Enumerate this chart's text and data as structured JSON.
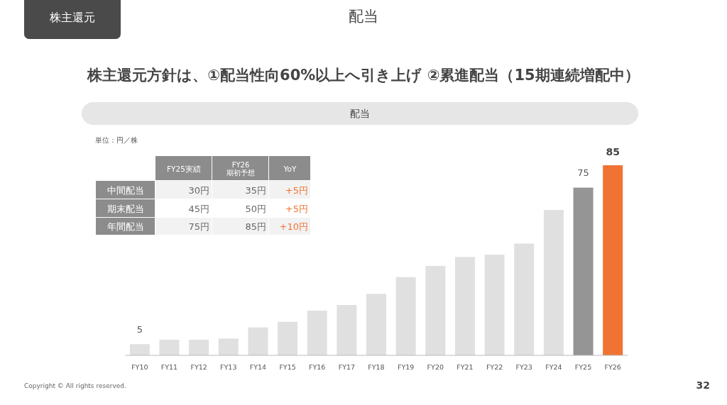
{
  "chart_data": {
    "type": "bar",
    "title": "配当",
    "subtitle": "株主還元方針は、①配当性向60%以上へ引き上げ ②累進配当（15期連続増配中）",
    "categories": [
      "FY10",
      "FY11",
      "FY12",
      "FY13",
      "FY14",
      "FY15",
      "FY16",
      "FY17",
      "FY18",
      "FY19",
      "FY20",
      "FY21",
      "FY22",
      "FY23",
      "FY24",
      "FY25",
      "FY26"
    ],
    "values": [
      5,
      7,
      7,
      7.5,
      12.5,
      15,
      20,
      22.5,
      27.5,
      35,
      40,
      44,
      45,
      50,
      65,
      75,
      85
    ],
    "colors": [
      "#e0e0e0",
      "#e0e0e0",
      "#e0e0e0",
      "#e0e0e0",
      "#e0e0e0",
      "#e0e0e0",
      "#e0e0e0",
      "#e0e0e0",
      "#e0e0e0",
      "#e0e0e0",
      "#e0e0e0",
      "#e0e0e0",
      "#e0e0e0",
      "#e0e0e0",
      "#e0e0e0",
      "#959595",
      "#f07333"
    ],
    "value_labels": [
      "5",
      null,
      null,
      null,
      null,
      null,
      null,
      null,
      null,
      null,
      null,
      null,
      null,
      null,
      null,
      "75",
      "85"
    ],
    "annotations": [
      "株主還元",
      "配当",
      "単位：円／株",
      "FY25実績",
      "FY26\n期初予想",
      "YoY",
      "中間配当",
      "30円",
      "35円",
      "+5円",
      "期末配当",
      "45円",
      "50円",
      "+5円",
      "年間配当",
      "75円",
      "85円",
      "+10円",
      "Copyright © All rights reserved.",
      "32"
    ]
  }
}
